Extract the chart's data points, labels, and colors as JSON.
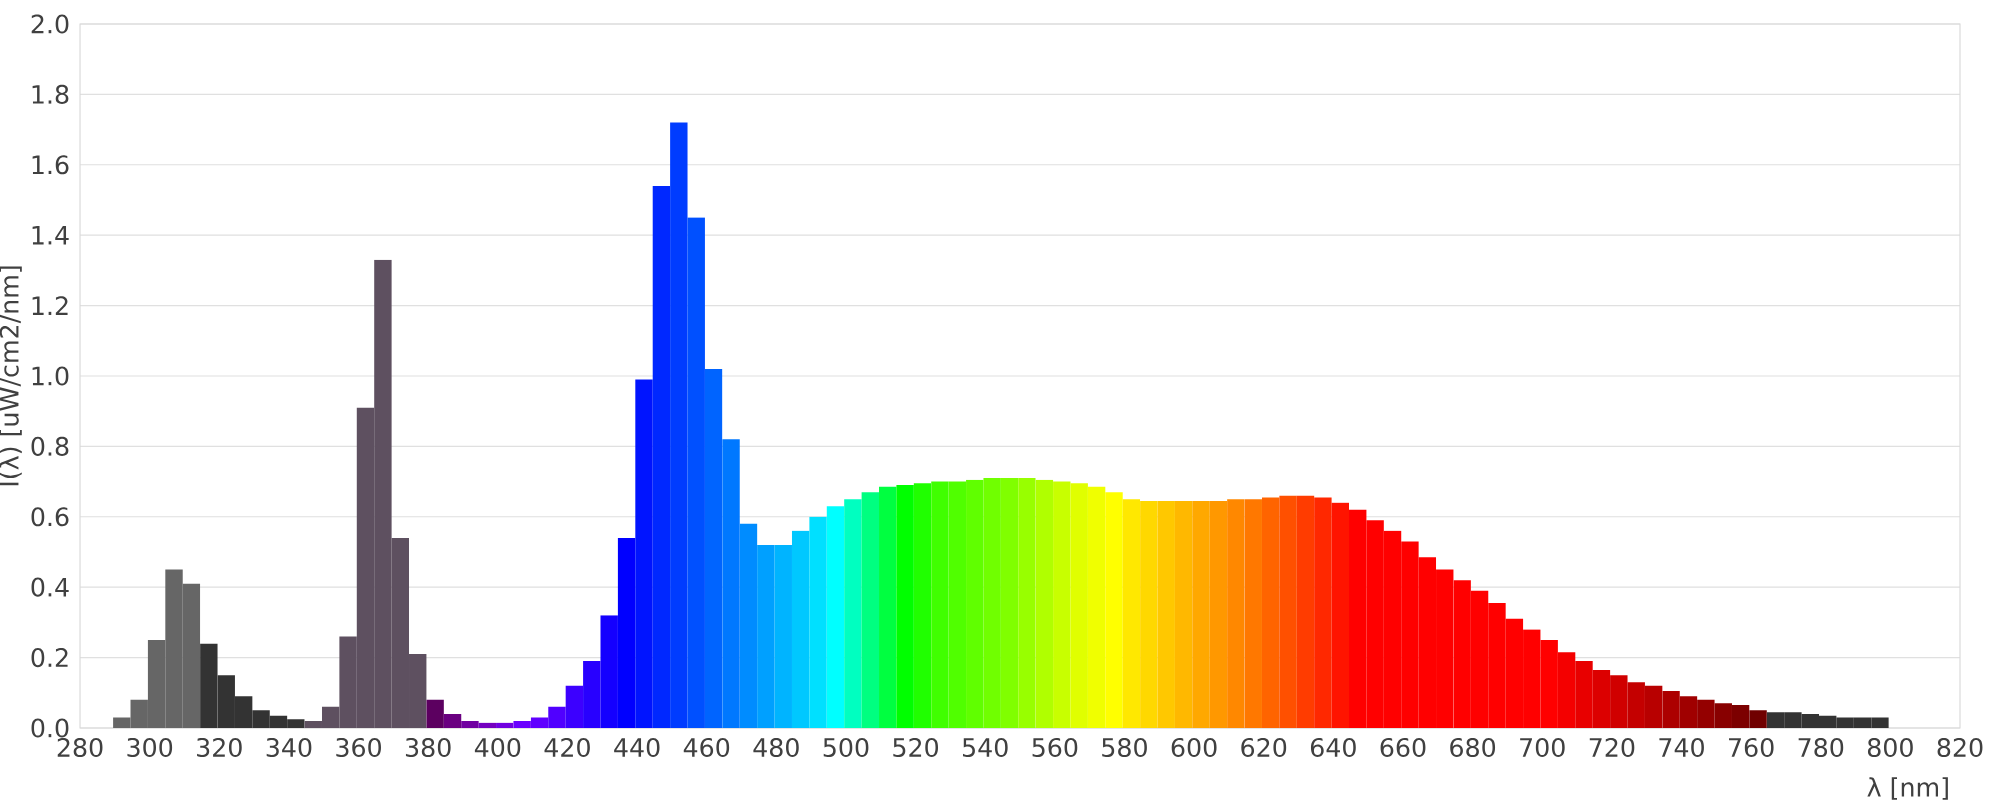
{
  "chart_data": {
    "type": "bar",
    "xlabel": "λ [nm]",
    "ylabel": "I(λ)  [uW/cm2/nm]",
    "x": [
      292,
      297,
      302,
      307,
      312,
      317,
      322,
      327,
      332,
      337,
      342,
      347,
      352,
      357,
      362,
      367,
      372,
      377,
      382,
      387,
      392,
      397,
      402,
      407,
      412,
      417,
      422,
      427,
      432,
      437,
      442,
      447,
      452,
      457,
      462,
      467,
      472,
      477,
      482,
      487,
      492,
      497,
      502,
      507,
      512,
      517,
      522,
      527,
      532,
      537,
      542,
      547,
      552,
      557,
      562,
      567,
      572,
      577,
      582,
      587,
      592,
      597,
      602,
      607,
      612,
      617,
      622,
      627,
      632,
      637,
      642,
      647,
      652,
      657,
      662,
      667,
      672,
      677,
      682,
      687,
      692,
      697,
      702,
      707,
      712,
      717,
      722,
      727,
      732,
      737,
      742,
      747,
      752,
      757,
      762,
      767,
      772,
      777,
      782,
      787,
      792,
      797
    ],
    "values": [
      0.03,
      0.08,
      0.25,
      0.45,
      0.41,
      0.24,
      0.15,
      0.09,
      0.05,
      0.035,
      0.025,
      0.02,
      0.06,
      0.26,
      0.91,
      1.33,
      0.54,
      0.21,
      0.08,
      0.04,
      0.02,
      0.015,
      0.015,
      0.02,
      0.03,
      0.06,
      0.12,
      0.19,
      0.32,
      0.54,
      0.99,
      1.54,
      1.72,
      1.45,
      1.02,
      0.82,
      0.58,
      0.52,
      0.52,
      0.56,
      0.6,
      0.63,
      0.65,
      0.67,
      0.685,
      0.69,
      0.695,
      0.7,
      0.7,
      0.705,
      0.71,
      0.71,
      0.71,
      0.705,
      0.7,
      0.695,
      0.685,
      0.67,
      0.65,
      0.645,
      0.645,
      0.645,
      0.645,
      0.645,
      0.65,
      0.65,
      0.655,
      0.66,
      0.66,
      0.655,
      0.64,
      0.62,
      0.59,
      0.56,
      0.53,
      0.485,
      0.45,
      0.42,
      0.39,
      0.355,
      0.31,
      0.28,
      0.25,
      0.215,
      0.19,
      0.165,
      0.15,
      0.13,
      0.12,
      0.105,
      0.09,
      0.08,
      0.07,
      0.065,
      0.05,
      0.045,
      0.045,
      0.04,
      0.035,
      0.03,
      0.03,
      0.03
    ],
    "colors": [
      "#666666",
      "#666666",
      "#666666",
      "#666666",
      "#666666",
      "#333333",
      "#333333",
      "#333333",
      "#333333",
      "#333333",
      "#333333",
      "#5e5060",
      "#5e5060",
      "#5e5060",
      "#5e5060",
      "#5e5060",
      "#5e5060",
      "#5e5060",
      "#5c0060",
      "#6a0080",
      "#7000a0",
      "#7400c0",
      "#7000e0",
      "#6a00ff",
      "#6000ff",
      "#5000ff",
      "#3c00ff",
      "#2800ff",
      "#1400ff",
      "#0000ff",
      "#0014ff",
      "#0028ff",
      "#003cff",
      "#0050ff",
      "#0064ff",
      "#0078ff",
      "#008cff",
      "#00a0ff",
      "#00b4ff",
      "#00c8ff",
      "#00e0ff",
      "#00ffff",
      "#00ffc0",
      "#00ff80",
      "#00ff40",
      "#00ff00",
      "#20ff00",
      "#40ff00",
      "#50ff00",
      "#60ff00",
      "#70ff00",
      "#80ff00",
      "#98ff00",
      "#b0ff00",
      "#c8ff00",
      "#e0ff00",
      "#f0ff00",
      "#ffff00",
      "#ffe800",
      "#ffd800",
      "#ffc800",
      "#ffb800",
      "#ffa800",
      "#ff9800",
      "#ff8800",
      "#ff7800",
      "#ff6400",
      "#ff5000",
      "#ff3c00",
      "#ff2800",
      "#ff1400",
      "#ff0000",
      "#ff0000",
      "#ff0000",
      "#ff0000",
      "#ff0000",
      "#ff0000",
      "#ff0000",
      "#ff0000",
      "#ff0000",
      "#ff0000",
      "#ff0000",
      "#ff0000",
      "#f40000",
      "#e80000",
      "#dc0000",
      "#d00000",
      "#c40000",
      "#b80000",
      "#ac0000",
      "#a00000",
      "#940000",
      "#880000",
      "#7c0000",
      "#700000",
      "#333333",
      "#333333",
      "#333333",
      "#333333",
      "#333333",
      "#333333",
      "#333333"
    ],
    "xlim": [
      280,
      820
    ],
    "xticks": [
      280,
      300,
      320,
      340,
      360,
      380,
      400,
      420,
      440,
      460,
      480,
      500,
      520,
      540,
      560,
      580,
      600,
      620,
      640,
      660,
      680,
      700,
      720,
      740,
      760,
      780,
      800,
      820
    ],
    "ylim": [
      0,
      2
    ],
    "yticks": [
      {
        "value": 0,
        "label": "0.0"
      },
      0.2,
      0.4,
      0.6,
      0.8,
      {
        "value": 1,
        "label": "1.0"
      },
      1.2,
      1.4,
      1.6,
      1.8,
      {
        "value": 2,
        "label": "2.0"
      }
    ],
    "grid": "y"
  }
}
